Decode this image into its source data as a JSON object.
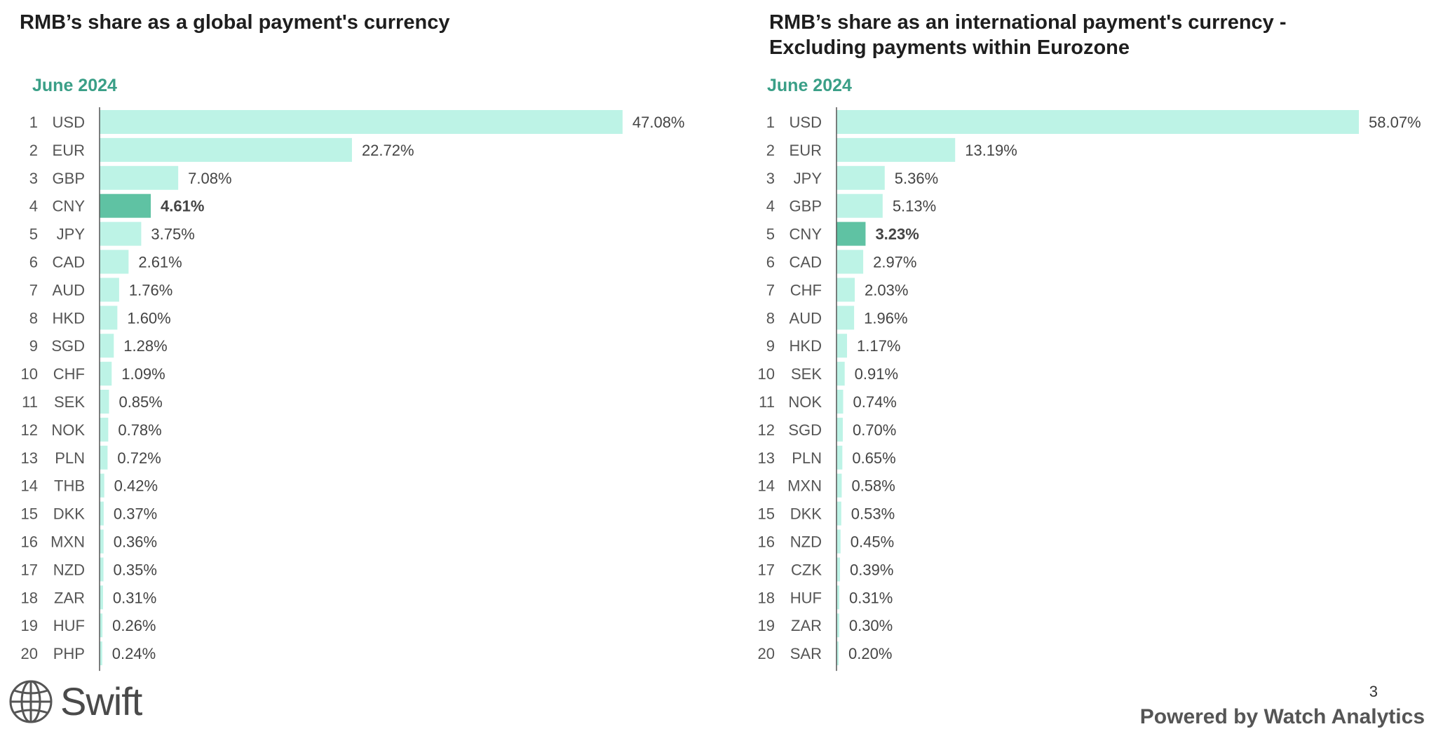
{
  "chart_data": [
    {
      "type": "bar",
      "orientation": "horizontal",
      "title": "RMB’s share as a global payment's currency",
      "subtitle": "June 2024",
      "ranks": [
        "1",
        "2",
        "3",
        "4",
        "5",
        "6",
        "7",
        "8",
        "9",
        "10",
        "11",
        "12",
        "13",
        "14",
        "15",
        "16",
        "17",
        "18",
        "19",
        "20"
      ],
      "categories": [
        "USD",
        "EUR",
        "GBP",
        "CNY",
        "JPY",
        "CAD",
        "AUD",
        "HKD",
        "SGD",
        "CHF",
        "SEK",
        "NOK",
        "PLN",
        "THB",
        "DKK",
        "MXN",
        "NZD",
        "ZAR",
        "HUF",
        "PHP"
      ],
      "values": [
        47.08,
        22.72,
        7.08,
        4.61,
        3.75,
        2.61,
        1.76,
        1.6,
        1.28,
        1.09,
        0.85,
        0.78,
        0.72,
        0.42,
        0.37,
        0.36,
        0.35,
        0.31,
        0.26,
        0.24
      ],
      "value_labels": [
        "47.08%",
        "22.72%",
        "7.08%",
        "4.61%",
        "3.75%",
        "2.61%",
        "1.76%",
        "1.60%",
        "1.28%",
        "1.09%",
        "0.85%",
        "0.78%",
        "0.72%",
        "0.42%",
        "0.37%",
        "0.36%",
        "0.35%",
        "0.31%",
        "0.26%",
        "0.24%"
      ],
      "highlight": "CNY",
      "bar_color": "#bdf3e6",
      "highlight_color": "#5fc2a3"
    },
    {
      "type": "bar",
      "orientation": "horizontal",
      "title": "RMB’s share as an international payment's currency - Excluding payments within Eurozone",
      "subtitle": "June 2024",
      "ranks": [
        "1",
        "2",
        "3",
        "4",
        "5",
        "6",
        "7",
        "8",
        "9",
        "10",
        "11",
        "12",
        "13",
        "14",
        "15",
        "16",
        "17",
        "18",
        "19",
        "20"
      ],
      "categories": [
        "USD",
        "EUR",
        "JPY",
        "GBP",
        "CNY",
        "CAD",
        "CHF",
        "AUD",
        "HKD",
        "SEK",
        "NOK",
        "SGD",
        "PLN",
        "MXN",
        "DKK",
        "NZD",
        "CZK",
        "HUF",
        "ZAR",
        "SAR"
      ],
      "values": [
        58.07,
        13.19,
        5.36,
        5.13,
        3.23,
        2.97,
        2.03,
        1.96,
        1.17,
        0.91,
        0.74,
        0.7,
        0.65,
        0.58,
        0.53,
        0.45,
        0.39,
        0.31,
        0.3,
        0.2
      ],
      "value_labels": [
        "58.07%",
        "13.19%",
        "5.36%",
        "5.13%",
        "3.23%",
        "2.97%",
        "2.03%",
        "1.96%",
        "1.17%",
        "0.91%",
        "0.74%",
        "0.70%",
        "0.65%",
        "0.58%",
        "0.53%",
        "0.45%",
        "0.39%",
        "0.31%",
        "0.30%",
        "0.20%"
      ],
      "highlight": "CNY",
      "bar_color": "#bdf3e6",
      "highlight_color": "#5fc2a3"
    }
  ],
  "footer": {
    "logo_text": "Swift",
    "page_number": "3",
    "powered_by": "Powered by Watch Analytics"
  },
  "icons": {
    "logo": "globe-icon"
  },
  "colors": {
    "accent": "#3a9f87",
    "bar": "#bdf3e6",
    "highlight": "#5fc2a3"
  }
}
